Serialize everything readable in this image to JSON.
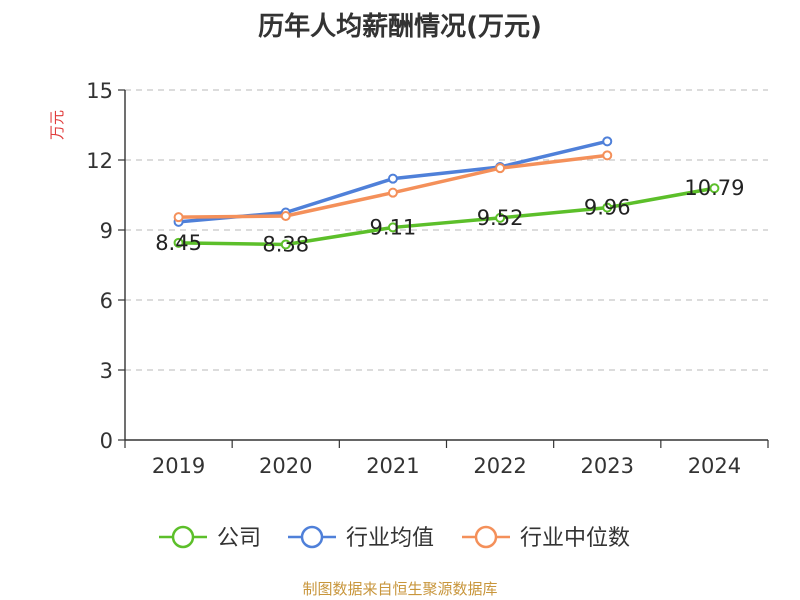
{
  "chart_data": {
    "type": "line",
    "title": "历年人均薪酬情况(万元)",
    "ylabel": "万元",
    "xlabel": "",
    "categories": [
      "2019",
      "2020",
      "2021",
      "2022",
      "2023",
      "2024"
    ],
    "ylim": [
      0,
      15
    ],
    "yticks": [
      "0",
      "3",
      "6",
      "9",
      "12",
      "15"
    ],
    "grid": true,
    "legend_position": "bottom",
    "series": [
      {
        "name": "公司",
        "color": "#5cbf2a",
        "values": [
          8.45,
          8.38,
          9.11,
          9.52,
          9.96,
          10.79
        ],
        "labels": [
          "8.45",
          "8.38",
          "9.11",
          "9.52",
          "9.96",
          "10.79"
        ]
      },
      {
        "name": "行业均值",
        "color": "#4f80d9",
        "values": [
          9.35,
          9.75,
          11.2,
          11.7,
          12.8,
          null
        ]
      },
      {
        "name": "行业中位数",
        "color": "#f4905a",
        "values": [
          9.55,
          9.6,
          10.6,
          11.65,
          12.2,
          null
        ]
      }
    ]
  },
  "source": "制图数据来自恒生聚源数据库"
}
